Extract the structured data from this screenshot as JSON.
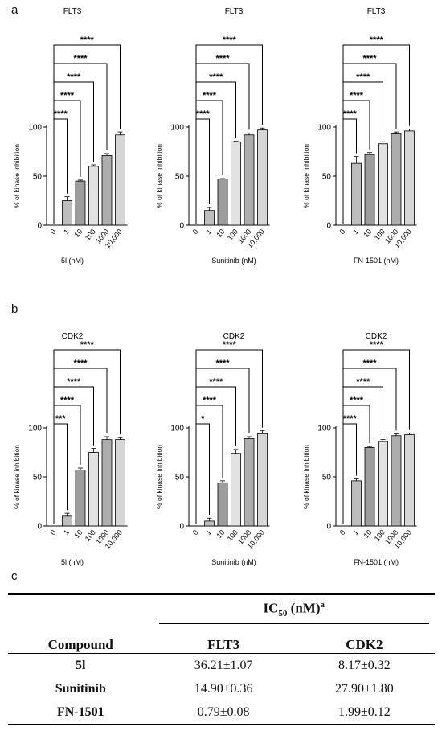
{
  "panels": {
    "a": "a",
    "b": "b",
    "c": "c"
  },
  "chart_data": [
    {
      "type": "bar",
      "row": "a",
      "title": "FLT3",
      "xlabel": "5l (nM)",
      "ylabel": "% of kinase inhibition",
      "ylim": [
        0,
        100
      ],
      "yticks": [
        0,
        50,
        100
      ],
      "categories": [
        "0",
        "1",
        "10",
        "100",
        "1000",
        "10,000"
      ],
      "values": [
        0,
        25,
        45,
        60,
        71,
        92
      ],
      "errors": [
        0,
        4,
        1,
        1.5,
        2,
        3
      ],
      "fill_colors": [
        "#d0d0d0",
        "#bdbdbd",
        "#9d9d9d",
        "#e2e2e2",
        "#adadad",
        "#d6d6d6"
      ],
      "significance": [
        {
          "to": "1",
          "label": "****"
        },
        {
          "to": "10",
          "label": "****"
        },
        {
          "to": "100",
          "label": "****"
        },
        {
          "to": "1000",
          "label": "****"
        },
        {
          "to": "10,000",
          "label": "****"
        }
      ]
    },
    {
      "type": "bar",
      "row": "a",
      "title": "FLT3",
      "xlabel": "Sunitinib (nM)",
      "ylabel": "% of kinase inhibition",
      "ylim": [
        0,
        100
      ],
      "yticks": [
        0,
        50,
        100
      ],
      "categories": [
        "0",
        "1",
        "10",
        "100",
        "1000",
        "10,000"
      ],
      "values": [
        0,
        15,
        47,
        85,
        92,
        97
      ],
      "errors": [
        0,
        3,
        0.5,
        0.5,
        2,
        2
      ],
      "fill_colors": [
        "#d0d0d0",
        "#bdbdbd",
        "#9d9d9d",
        "#e2e2e2",
        "#adadad",
        "#d6d6d6"
      ],
      "significance": [
        {
          "to": "1",
          "label": "****"
        },
        {
          "to": "10",
          "label": "****"
        },
        {
          "to": "100",
          "label": "****"
        },
        {
          "to": "1000",
          "label": "****"
        },
        {
          "to": "10,000",
          "label": "****"
        }
      ]
    },
    {
      "type": "bar",
      "row": "a",
      "title": "FLT3",
      "xlabel": "FN-1501 (nM)",
      "ylabel": "% of kinase inhibition",
      "ylim": [
        0,
        100
      ],
      "yticks": [
        0,
        50,
        100
      ],
      "categories": [
        "0",
        "1",
        "10",
        "100",
        "1000",
        "10,000"
      ],
      "values": [
        0,
        63,
        72,
        83,
        93,
        96
      ],
      "errors": [
        0,
        7,
        2,
        2,
        2,
        2
      ],
      "fill_colors": [
        "#d0d0d0",
        "#bdbdbd",
        "#9d9d9d",
        "#e2e2e2",
        "#adadad",
        "#d6d6d6"
      ],
      "significance": [
        {
          "to": "1",
          "label": "****"
        },
        {
          "to": "10",
          "label": "****"
        },
        {
          "to": "100",
          "label": "****"
        },
        {
          "to": "1000",
          "label": "****"
        },
        {
          "to": "10,000",
          "label": "****"
        }
      ]
    },
    {
      "type": "bar",
      "row": "b",
      "title": "CDK2",
      "xlabel": "5l (nM)",
      "ylabel": "% of kinase inhibition",
      "ylim": [
        0,
        100
      ],
      "yticks": [
        0,
        50,
        100
      ],
      "categories": [
        "0",
        "1",
        "10",
        "100",
        "1000",
        "10,000"
      ],
      "values": [
        0,
        10,
        57,
        75,
        88,
        88
      ],
      "errors": [
        0,
        3,
        2,
        4,
        3,
        2
      ],
      "fill_colors": [
        "#d0d0d0",
        "#bdbdbd",
        "#9d9d9d",
        "#e2e2e2",
        "#adadad",
        "#d6d6d6"
      ],
      "significance": [
        {
          "to": "1",
          "label": "***"
        },
        {
          "to": "10",
          "label": "****"
        },
        {
          "to": "100",
          "label": "****"
        },
        {
          "to": "1000",
          "label": "****"
        },
        {
          "to": "10,000",
          "label": "****"
        }
      ]
    },
    {
      "type": "bar",
      "row": "b",
      "title": "CDK2",
      "xlabel": "Sunitinib (nM)",
      "ylabel": "% of kinase inhibition",
      "ylim": [
        0,
        100
      ],
      "yticks": [
        0,
        50,
        100
      ],
      "categories": [
        "0",
        "1",
        "10",
        "100",
        "1000",
        "10,000"
      ],
      "values": [
        0,
        5,
        44,
        74,
        89,
        94
      ],
      "errors": [
        0,
        3,
        2,
        4,
        2,
        3
      ],
      "fill_colors": [
        "#d0d0d0",
        "#bdbdbd",
        "#9d9d9d",
        "#e2e2e2",
        "#adadad",
        "#d6d6d6"
      ],
      "significance": [
        {
          "to": "1",
          "label": "*"
        },
        {
          "to": "10",
          "label": "****"
        },
        {
          "to": "100",
          "label": "****"
        },
        {
          "to": "1000",
          "label": "****"
        },
        {
          "to": "10,000",
          "label": "****"
        }
      ]
    },
    {
      "type": "bar",
      "row": "b",
      "title": "CDK2",
      "xlabel": "FN-1501 (nM)",
      "ylabel": "% of kinase inhibition",
      "ylim": [
        0,
        100
      ],
      "yticks": [
        0,
        50,
        100
      ],
      "categories": [
        "0",
        "1",
        "10",
        "100",
        "1000",
        "10,000"
      ],
      "values": [
        0,
        46,
        80,
        86,
        92,
        93
      ],
      "errors": [
        0,
        2,
        1,
        2,
        2,
        1.5
      ],
      "fill_colors": [
        "#d0d0d0",
        "#bdbdbd",
        "#9d9d9d",
        "#e2e2e2",
        "#adadad",
        "#d6d6d6"
      ],
      "significance": [
        {
          "to": "1",
          "label": "****"
        },
        {
          "to": "10",
          "label": "****"
        },
        {
          "to": "100",
          "label": "****"
        },
        {
          "to": "1000",
          "label": "****"
        },
        {
          "to": "10,000",
          "label": "****"
        }
      ]
    }
  ],
  "table": {
    "header_ic": "IC",
    "header_ic_sub": "50",
    "header_ic_unit": " (nM)",
    "header_ic_sup": "a",
    "col_compound": "Compound",
    "col_flt3": "FLT3",
    "col_cdk2": "CDK2",
    "rows": [
      {
        "compound": "5l",
        "flt3": "36.21±1.07",
        "cdk2": "8.17±0.32"
      },
      {
        "compound": "Sunitinib",
        "flt3": "14.90±0.36",
        "cdk2": "27.90±1.80"
      },
      {
        "compound": "FN-1501",
        "flt3": "0.79±0.08",
        "cdk2": "1.99±0.12"
      }
    ]
  }
}
